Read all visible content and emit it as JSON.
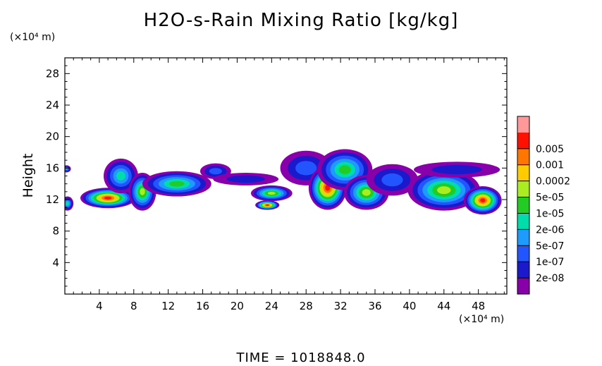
{
  "chart_data": {
    "type": "heatmap",
    "title": "H2O-s-Rain Mixing Ratio [kg/kg]",
    "ylabel": "Height",
    "xlabel": "",
    "x_unit_label": "(×10⁴ m)",
    "y_unit_label": "(×10⁴ m)",
    "footer": "TIME  =  1018848.0",
    "xlim": [
      0,
      51.3
    ],
    "ylim": [
      0,
      30
    ],
    "x_ticks": [
      4,
      8,
      12,
      16,
      20,
      24,
      28,
      32,
      36,
      40,
      44,
      48
    ],
    "y_ticks": [
      4,
      8,
      12,
      16,
      20,
      24,
      28
    ],
    "legend": {
      "placement": "right",
      "levels": [
        "2e-08",
        "1e-07",
        "5e-07",
        "2e-06",
        "1e-05",
        "5e-05",
        "0.0002",
        "0.001",
        "0.005"
      ],
      "colors": [
        "#8800aa",
        "#1a1acc",
        "#2255ff",
        "#1e9bff",
        "#00ddaa",
        "#22cc22",
        "#aaee22",
        "#ffcc00",
        "#ff7700",
        "#ff1100",
        "#ff9999"
      ]
    },
    "cells": [
      {
        "x": 0.2,
        "y": 15.9,
        "rx": 0.5,
        "ry": 0.45,
        "level": 3
      },
      {
        "x": 0.3,
        "y": 11.5,
        "rx": 0.7,
        "ry": 0.9,
        "level": 4
      },
      {
        "x": 5.0,
        "y": 12.2,
        "rx": 3.2,
        "ry": 1.3,
        "level": 9
      },
      {
        "x": 6.5,
        "y": 15.0,
        "rx": 2.0,
        "ry": 2.2,
        "level": 4
      },
      {
        "x": 9.0,
        "y": 13.0,
        "rx": 1.6,
        "ry": 2.4,
        "level": 6
      },
      {
        "x": 13.0,
        "y": 14.0,
        "rx": 4.0,
        "ry": 1.6,
        "level": 5
      },
      {
        "x": 17.5,
        "y": 15.6,
        "rx": 1.8,
        "ry": 1.0,
        "level": 2
      },
      {
        "x": 21.0,
        "y": 14.6,
        "rx": 3.8,
        "ry": 0.8,
        "level": 1
      },
      {
        "x": 24.0,
        "y": 12.8,
        "rx": 2.4,
        "ry": 1.0,
        "level": 6
      },
      {
        "x": 23.5,
        "y": 11.3,
        "rx": 1.4,
        "ry": 0.6,
        "level": 9
      },
      {
        "x": 28.0,
        "y": 16.0,
        "rx": 3.0,
        "ry": 2.2,
        "level": 2
      },
      {
        "x": 30.5,
        "y": 13.5,
        "rx": 2.2,
        "ry": 2.8,
        "level": 9
      },
      {
        "x": 32.5,
        "y": 15.8,
        "rx": 3.2,
        "ry": 2.6,
        "level": 5
      },
      {
        "x": 35.0,
        "y": 12.9,
        "rx": 2.6,
        "ry": 2.2,
        "level": 6
      },
      {
        "x": 38.0,
        "y": 14.5,
        "rx": 3.0,
        "ry": 2.0,
        "level": 2
      },
      {
        "x": 44.0,
        "y": 13.2,
        "rx": 4.2,
        "ry": 2.6,
        "level": 6
      },
      {
        "x": 45.5,
        "y": 15.8,
        "rx": 5.0,
        "ry": 1.0,
        "level": 1
      },
      {
        "x": 48.5,
        "y": 11.9,
        "rx": 2.2,
        "ry": 1.8,
        "level": 9
      }
    ]
  }
}
